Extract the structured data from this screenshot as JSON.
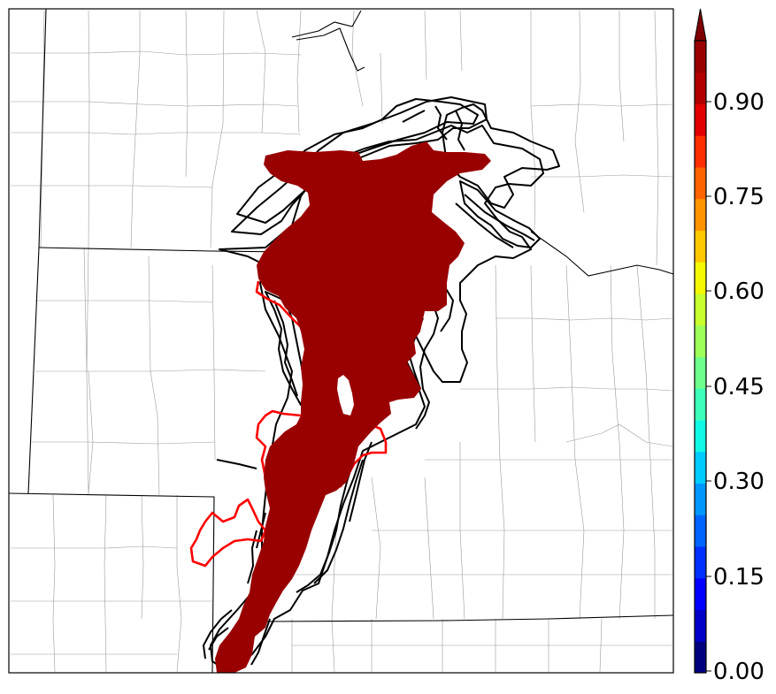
{
  "map": {
    "colors": {
      "probability_fill": "#990000",
      "contour_black": "#000000",
      "contour_red": "#ff0000",
      "border": "#000000",
      "county_lines": "#9a9a9a"
    }
  },
  "colorbar": {
    "ticks": [
      "0.90",
      "0.75",
      "0.60",
      "0.45",
      "0.30",
      "0.15",
      "0.00"
    ],
    "levels": [
      {
        "min": 0.0,
        "color": "#00007f"
      },
      {
        "min": 0.05,
        "color": "#0000c8"
      },
      {
        "min": 0.1,
        "color": "#0000ff"
      },
      {
        "min": 0.15,
        "color": "#0030ff"
      },
      {
        "min": 0.2,
        "color": "#0064ff"
      },
      {
        "min": 0.25,
        "color": "#0098ff"
      },
      {
        "min": 0.3,
        "color": "#00ccff"
      },
      {
        "min": 0.35,
        "color": "#10f8e6"
      },
      {
        "min": 0.4,
        "color": "#3dffba"
      },
      {
        "min": 0.45,
        "color": "#6dff8a"
      },
      {
        "min": 0.5,
        "color": "#9dff5a"
      },
      {
        "min": 0.55,
        "color": "#c8ff2e"
      },
      {
        "min": 0.6,
        "color": "#f4f802"
      },
      {
        "min": 0.65,
        "color": "#ffc800"
      },
      {
        "min": 0.7,
        "color": "#ff9400"
      },
      {
        "min": 0.75,
        "color": "#ff6300"
      },
      {
        "min": 0.8,
        "color": "#ff2e00"
      },
      {
        "min": 0.85,
        "color": "#e30000"
      },
      {
        "min": 0.9,
        "color": "#b20000"
      },
      {
        "min": 0.95,
        "color": "#990000"
      }
    ],
    "extend": "max",
    "extend_color": "#7f0000"
  }
}
